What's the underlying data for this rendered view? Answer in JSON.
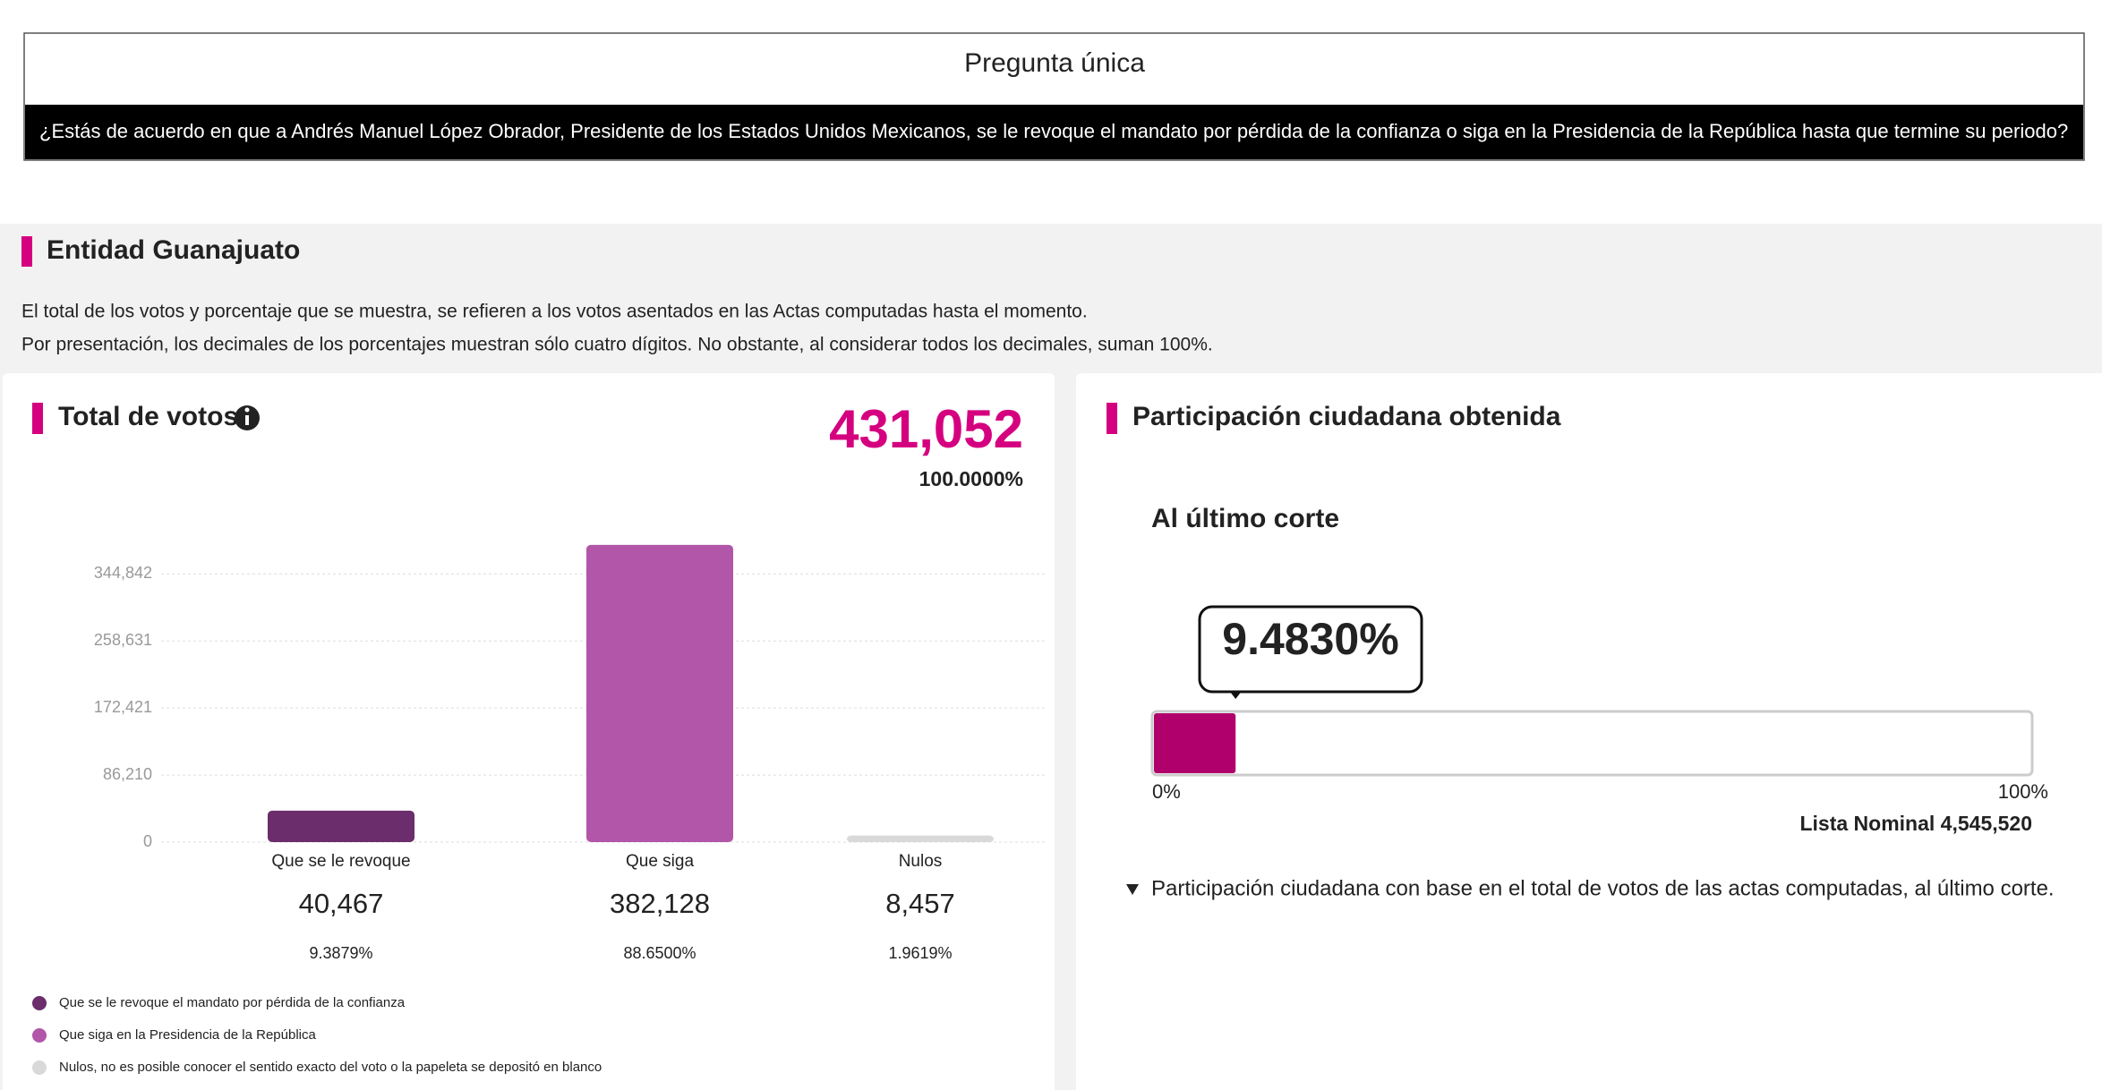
{
  "question": {
    "title": "Pregunta única",
    "text": "¿Estás de acuerdo en que a Andrés Manuel López Obrador, Presidente de los Estados Unidos Mexicanos, se le revoque el mandato por pérdida de la confianza o siga en la Presidencia de la República hasta que termine su periodo?"
  },
  "entity": {
    "title": "Entidad Guanajuato",
    "notes": [
      "El total de los votos y porcentaje que se muestra, se refieren a los votos asentados en las Actas computadas hasta el momento.",
      "Por presentación, los decimales de los porcentajes muestran sólo cuatro dígitos. No obstante, al considerar todos los decimales, suman 100%."
    ]
  },
  "total_votes": {
    "title": "Total de votos",
    "total": "431,052",
    "total_percent": "100.0000%",
    "chart_data": {
      "type": "bar",
      "categories": [
        "Que se le revoque",
        "Que siga",
        "Nulos"
      ],
      "values": [
        40467,
        382128,
        8457
      ],
      "value_labels": [
        "40,467",
        "382,128",
        "8,457"
      ],
      "percent_labels": [
        "9.3879%",
        "88.6500%",
        "1.9619%"
      ],
      "colors": [
        "#6b2d6b",
        "#b156a8",
        "#d9d9d9"
      ],
      "ylim": [
        0,
        390000
      ],
      "yticks": [
        0,
        {
          "value": 86210,
          "label": "86,210"
        },
        {
          "value": 172421,
          "label": "172,421"
        },
        {
          "value": 258631,
          "label": "258,631"
        },
        {
          "value": 344842,
          "label": "344,842"
        }
      ],
      "grid": true,
      "legend": [
        "Que se le revoque el mandato por pérdida de la confianza",
        "Que siga en la Presidencia de la República",
        "Nulos, no es posible conocer el sentido exacto del voto o la papeleta se depositó en blanco"
      ]
    }
  },
  "participation": {
    "title": "Participación ciudadana obtenida",
    "subtitle": "Al último corte",
    "chart_data": {
      "type": "progress",
      "value": 9.483,
      "value_label": "9.4830%",
      "color": "#b0006b",
      "xlim": [
        0,
        100
      ],
      "xticks": [
        {
          "value": 0,
          "label": "0%"
        },
        {
          "value": 100,
          "label": "100%"
        }
      ]
    },
    "nominal_list": "Lista Nominal 4,545,520",
    "note": "Participación ciudadana con base en el total de votos de las actas computadas, al último corte."
  }
}
